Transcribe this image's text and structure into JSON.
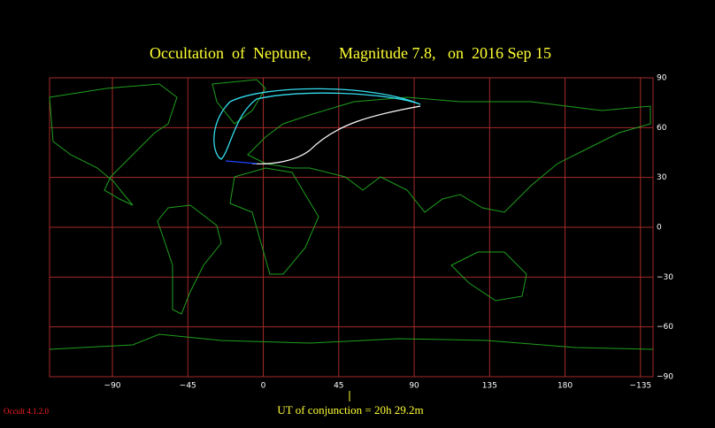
{
  "chart_data": {
    "type": "map",
    "title": "Occultation  of  Neptune,       Magnitude 7.8,   on  2016 Sep 15",
    "xlim": [
      -127.5,
      232.5
    ],
    "ylim": [
      -90,
      90
    ],
    "xticks": [
      {
        "value": -90,
        "label": "−90"
      },
      {
        "value": -45,
        "label": "−45"
      },
      0,
      45,
      90,
      135,
      180,
      {
        "value": -135,
        "label": "−135"
      }
    ],
    "yticks": [
      90,
      60,
      30,
      0,
      {
        "value": -30,
        "label": "−30"
      },
      {
        "value": -60,
        "label": "−60"
      },
      {
        "value": -90,
        "label": "−90"
      }
    ],
    "grid": true,
    "grid_color": "#a52a2a",
    "annotation": "UT of conjunction = 20h 29.2m",
    "version": "Occult 4.1.2.0"
  }
}
